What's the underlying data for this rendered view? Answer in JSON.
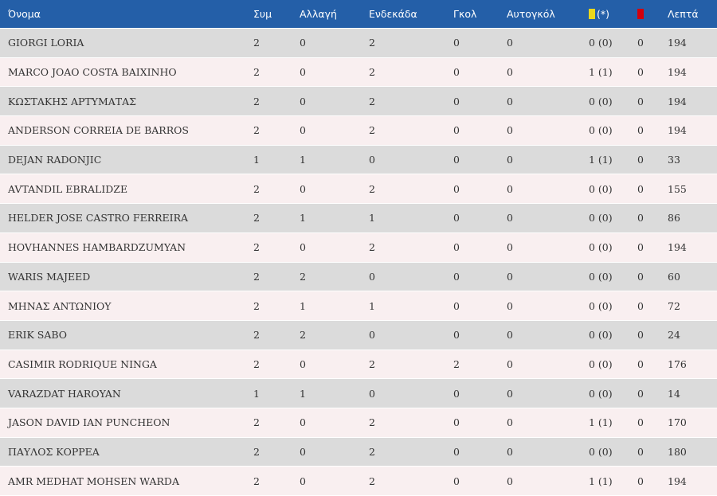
{
  "header": {
    "name": "Όνομα",
    "apps": "Συμ",
    "sub": "Αλλαγή",
    "starts": "Ενδεκάδα",
    "goals": "Γκολ",
    "own_goals": "Αυτογκόλ",
    "yellow_suffix": "(*)",
    "minutes": "Λεπτά",
    "yellow_color": "#ecd81c",
    "red_color": "#d3000c",
    "header_bg": "#245fa8"
  },
  "rows": [
    {
      "name": "GIORGI LORIA",
      "apps": "2",
      "sub": "0",
      "starts": "2",
      "goals": "0",
      "own": "0",
      "yellow": "0 (0)",
      "red": "0",
      "minutes": "194"
    },
    {
      "name": "MARCO JOAO COSTA BAIXINHO",
      "apps": "2",
      "sub": "0",
      "starts": "2",
      "goals": "0",
      "own": "0",
      "yellow": "1 (1)",
      "red": "0",
      "minutes": "194"
    },
    {
      "name": "ΚΩΣΤΑΚΗΣ ΑΡΤΥΜΑΤΑΣ",
      "apps": "2",
      "sub": "0",
      "starts": "2",
      "goals": "0",
      "own": "0",
      "yellow": "0 (0)",
      "red": "0",
      "minutes": "194"
    },
    {
      "name": "ANDERSON CORREIA DE BARROS",
      "apps": "2",
      "sub": "0",
      "starts": "2",
      "goals": "0",
      "own": "0",
      "yellow": "0 (0)",
      "red": "0",
      "minutes": "194"
    },
    {
      "name": "DEJAN RADONJIC",
      "apps": "1",
      "sub": "1",
      "starts": "0",
      "goals": "0",
      "own": "0",
      "yellow": "1 (1)",
      "red": "0",
      "minutes": "33"
    },
    {
      "name": "AVTANDIL EBRALIDZE",
      "apps": "2",
      "sub": "0",
      "starts": "2",
      "goals": "0",
      "own": "0",
      "yellow": "0 (0)",
      "red": "0",
      "minutes": "155"
    },
    {
      "name": "HELDER JOSE CASTRO FERREIRA",
      "apps": "2",
      "sub": "1",
      "starts": "1",
      "goals": "0",
      "own": "0",
      "yellow": "0 (0)",
      "red": "0",
      "minutes": "86"
    },
    {
      "name": "HOVHANNES HAMBARDZUMYAN",
      "apps": "2",
      "sub": "0",
      "starts": "2",
      "goals": "0",
      "own": "0",
      "yellow": "0 (0)",
      "red": "0",
      "minutes": "194"
    },
    {
      "name": "WARIS MAJEED",
      "apps": "2",
      "sub": "2",
      "starts": "0",
      "goals": "0",
      "own": "0",
      "yellow": "0 (0)",
      "red": "0",
      "minutes": "60"
    },
    {
      "name": "ΜΗΝΑΣ ΑΝΤΩΝΙΟΥ",
      "apps": "2",
      "sub": "1",
      "starts": "1",
      "goals": "0",
      "own": "0",
      "yellow": "0 (0)",
      "red": "0",
      "minutes": "72"
    },
    {
      "name": "ERIK SABO",
      "apps": "2",
      "sub": "2",
      "starts": "0",
      "goals": "0",
      "own": "0",
      "yellow": "0 (0)",
      "red": "0",
      "minutes": "24"
    },
    {
      "name": "CASIMIR RODRIQUE NINGA",
      "apps": "2",
      "sub": "0",
      "starts": "2",
      "goals": "2",
      "own": "0",
      "yellow": "0 (0)",
      "red": "0",
      "minutes": "176"
    },
    {
      "name": "VARAZDAT HAROYAN",
      "apps": "1",
      "sub": "1",
      "starts": "0",
      "goals": "0",
      "own": "0",
      "yellow": "0 (0)",
      "red": "0",
      "minutes": "14"
    },
    {
      "name": "JASON DAVID IAN PUNCHEON",
      "apps": "2",
      "sub": "0",
      "starts": "2",
      "goals": "0",
      "own": "0",
      "yellow": "1 (1)",
      "red": "0",
      "minutes": "170"
    },
    {
      "name": "ΠΑΥΛΟΣ ΚΟΡΡΕΑ",
      "apps": "2",
      "sub": "0",
      "starts": "2",
      "goals": "0",
      "own": "0",
      "yellow": "0 (0)",
      "red": "0",
      "minutes": "180"
    },
    {
      "name": "AMR MEDHAT MOHSEN WARDA",
      "apps": "2",
      "sub": "0",
      "starts": "2",
      "goals": "0",
      "own": "0",
      "yellow": "1 (1)",
      "red": "0",
      "minutes": "194"
    }
  ]
}
